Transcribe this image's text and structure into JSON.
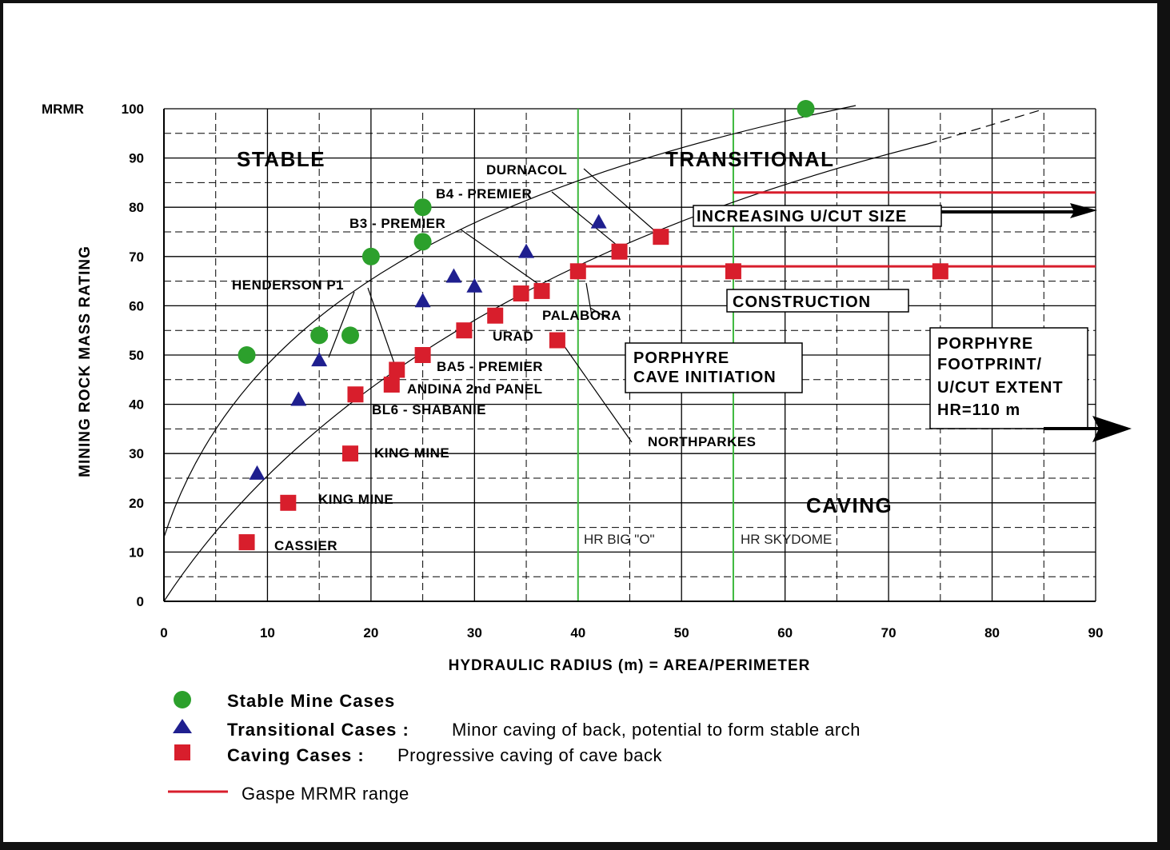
{
  "chart_data": {
    "type": "scatter",
    "xlabel": "HYDRAULIC RADIUS (m) = AREA/PERIMETER",
    "ylabel": "MINING ROCK MASS RATING",
    "ylabel_top": "MRMR",
    "xlim": [
      0,
      90
    ],
    "ylim": [
      0,
      100
    ],
    "x_ticks": [
      0,
      10,
      20,
      30,
      40,
      50,
      60,
      70,
      80,
      90
    ],
    "y_ticks": [
      0,
      10,
      20,
      30,
      40,
      50,
      60,
      70,
      80,
      90,
      100
    ],
    "grid": true,
    "series": [
      {
        "name": "Stable Mine Cases",
        "marker": "circle",
        "color": "#2ca02c",
        "points": [
          [
            8,
            50
          ],
          [
            15,
            54
          ],
          [
            18,
            54
          ],
          [
            20,
            70
          ],
          [
            25,
            73
          ],
          [
            25,
            80
          ],
          [
            62,
            100
          ]
        ]
      },
      {
        "name": "Transitional Cases",
        "marker": "triangle",
        "color": "#1f1f8f",
        "points": [
          [
            9,
            26
          ],
          [
            13,
            41
          ],
          [
            15,
            49
          ],
          [
            25,
            61
          ],
          [
            28,
            66
          ],
          [
            30,
            64
          ],
          [
            35,
            71
          ],
          [
            42,
            77
          ]
        ]
      },
      {
        "name": "Caving Cases",
        "marker": "square",
        "color": "#d81e2c",
        "points": [
          [
            8,
            12
          ],
          [
            12,
            20
          ],
          [
            18,
            30
          ],
          [
            18.5,
            42
          ],
          [
            22,
            44
          ],
          [
            22.5,
            47
          ],
          [
            25,
            50
          ],
          [
            29,
            55
          ],
          [
            32,
            58
          ],
          [
            34.5,
            62.5
          ],
          [
            36.5,
            63
          ],
          [
            38,
            53
          ],
          [
            40,
            67
          ],
          [
            44,
            71
          ],
          [
            48,
            74
          ],
          [
            55,
            67
          ],
          [
            75,
            67
          ]
        ]
      }
    ],
    "gaspe_range": {
      "name": "Gaspe MRMR range",
      "color": "#d81e2c",
      "y_values": [
        68,
        83
      ],
      "x_start": [
        40,
        55
      ]
    },
    "reference_lines": [
      {
        "label": "HR BIG \"O\"",
        "x": 40,
        "color": "#3cb83c"
      },
      {
        "label": "HR SKYDOME",
        "x": 55,
        "color": "#3cb83c"
      }
    ],
    "regions": [
      "STABLE",
      "TRANSITIONAL",
      "CAVING"
    ],
    "case_labels": [
      "DURNACOL",
      "B4 - PREMIER",
      "B3 - PREMIER",
      "HENDERSON P1",
      "PALABORA",
      "URAD",
      "BA5 - PREMIER",
      "ANDINA 2nd PANEL",
      "BL6 - SHABANIE",
      "KING MINE",
      "KING MINE",
      "CASSIER",
      "NORTHPARKES"
    ],
    "boxes": {
      "increasing": "INCREASING U/CUT SIZE",
      "construction": "CONSTRUCTION",
      "cave_init": [
        "PORPHYRE",
        "CAVE INITIATION"
      ],
      "footprint": [
        "PORPHYRE",
        "FOOTPRINT/",
        "U/CUT EXTENT",
        "HR=110 m"
      ]
    }
  },
  "legend": {
    "stable": {
      "bold": "Stable Mine Cases",
      "desc": ""
    },
    "transitional": {
      "bold": "Transitional Cases :",
      "desc": "Minor caving of back, potential to form stable arch"
    },
    "caving": {
      "bold": "Caving Cases :",
      "desc": "Progressive caving of cave back"
    },
    "gaspe": {
      "desc": "Gaspe MRMR range"
    }
  },
  "colors": {
    "stable": "#2ca02c",
    "transitional": "#1f1f8f",
    "caving": "#d81e2c",
    "gaspe": "#d81e2c",
    "hr_line": "#3cb83c"
  }
}
